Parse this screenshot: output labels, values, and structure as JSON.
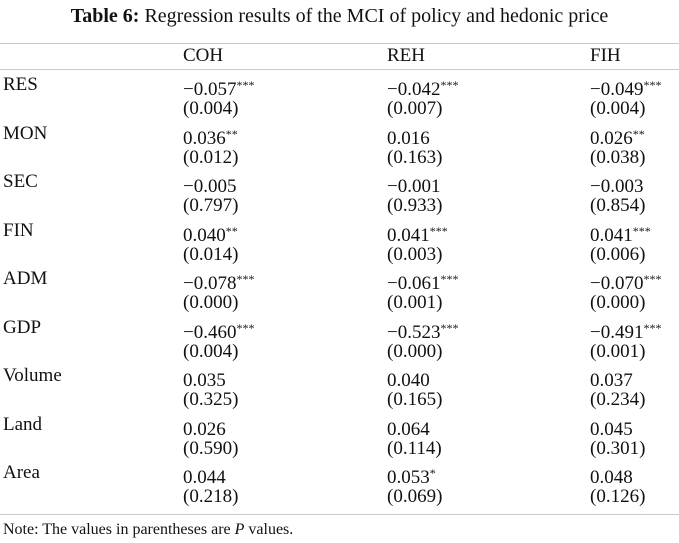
{
  "title": {
    "label": "Table 6:",
    "text": "Regression results of the MCI of policy and hedonic price"
  },
  "columns": [
    "COH",
    "REH",
    "FIH"
  ],
  "rows": [
    {
      "name": "RES",
      "coef": [
        [
          "−0.057",
          "***"
        ],
        [
          "−0.042",
          "***"
        ],
        [
          "−0.049",
          "***"
        ]
      ],
      "p": [
        "(0.004)",
        "(0.007)",
        "(0.004)"
      ]
    },
    {
      "name": "MON",
      "coef": [
        [
          "0.036",
          "**"
        ],
        [
          "0.016",
          ""
        ],
        [
          "0.026",
          "**"
        ]
      ],
      "p": [
        "(0.012)",
        "(0.163)",
        "(0.038)"
      ]
    },
    {
      "name": "SEC",
      "coef": [
        [
          "−0.005",
          ""
        ],
        [
          "−0.001",
          ""
        ],
        [
          "−0.003",
          ""
        ]
      ],
      "p": [
        "(0.797)",
        "(0.933)",
        "(0.854)"
      ]
    },
    {
      "name": "FIN",
      "coef": [
        [
          "0.040",
          "**"
        ],
        [
          "0.041",
          "***"
        ],
        [
          "0.041",
          "***"
        ]
      ],
      "p": [
        "(0.014)",
        "(0.003)",
        "(0.006)"
      ]
    },
    {
      "name": "ADM",
      "coef": [
        [
          "−0.078",
          "***"
        ],
        [
          "−0.061",
          "***"
        ],
        [
          "−0.070",
          "***"
        ]
      ],
      "p": [
        "(0.000)",
        "(0.001)",
        "(0.000)"
      ]
    },
    {
      "name": "GDP",
      "coef": [
        [
          "−0.460",
          "***"
        ],
        [
          "−0.523",
          "***"
        ],
        [
          "−0.491",
          "***"
        ]
      ],
      "p": [
        "(0.004)",
        "(0.000)",
        "(0.001)"
      ]
    },
    {
      "name": "Volume",
      "coef": [
        [
          "0.035",
          ""
        ],
        [
          "0.040",
          ""
        ],
        [
          "0.037",
          ""
        ]
      ],
      "p": [
        "(0.325)",
        "(0.165)",
        "(0.234)"
      ]
    },
    {
      "name": "Land",
      "coef": [
        [
          "0.026",
          ""
        ],
        [
          "0.064",
          ""
        ],
        [
          "0.045",
          ""
        ]
      ],
      "p": [
        "(0.590)",
        "(0.114)",
        "(0.301)"
      ]
    },
    {
      "name": "Area",
      "coef": [
        [
          "0.044",
          ""
        ],
        [
          "0.053",
          "*"
        ],
        [
          "0.048",
          ""
        ]
      ],
      "p": [
        "(0.218)",
        "(0.069)",
        "(0.126)"
      ]
    }
  ],
  "note": {
    "prefix": "Note: The values in parentheses are ",
    "italic": "P",
    "suffix": " values."
  }
}
